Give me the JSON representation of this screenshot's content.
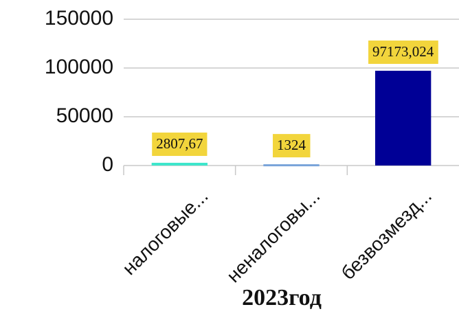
{
  "chart_data": {
    "type": "bar",
    "categories": [
      "налоговые...",
      "неналоговы...",
      "безвозмезд..."
    ],
    "values": [
      2807.67,
      1324,
      97173.024
    ],
    "value_labels": [
      "2807,67",
      "1324",
      "97173,024"
    ],
    "colors": [
      "#3ee6cc",
      "#78a3d9",
      "#000096"
    ],
    "label_background": "#f2d53c",
    "x_axis_label": "2023год",
    "ylim": [
      0,
      150000
    ],
    "yticks": [
      0,
      50000,
      100000,
      150000
    ],
    "grid": true
  }
}
